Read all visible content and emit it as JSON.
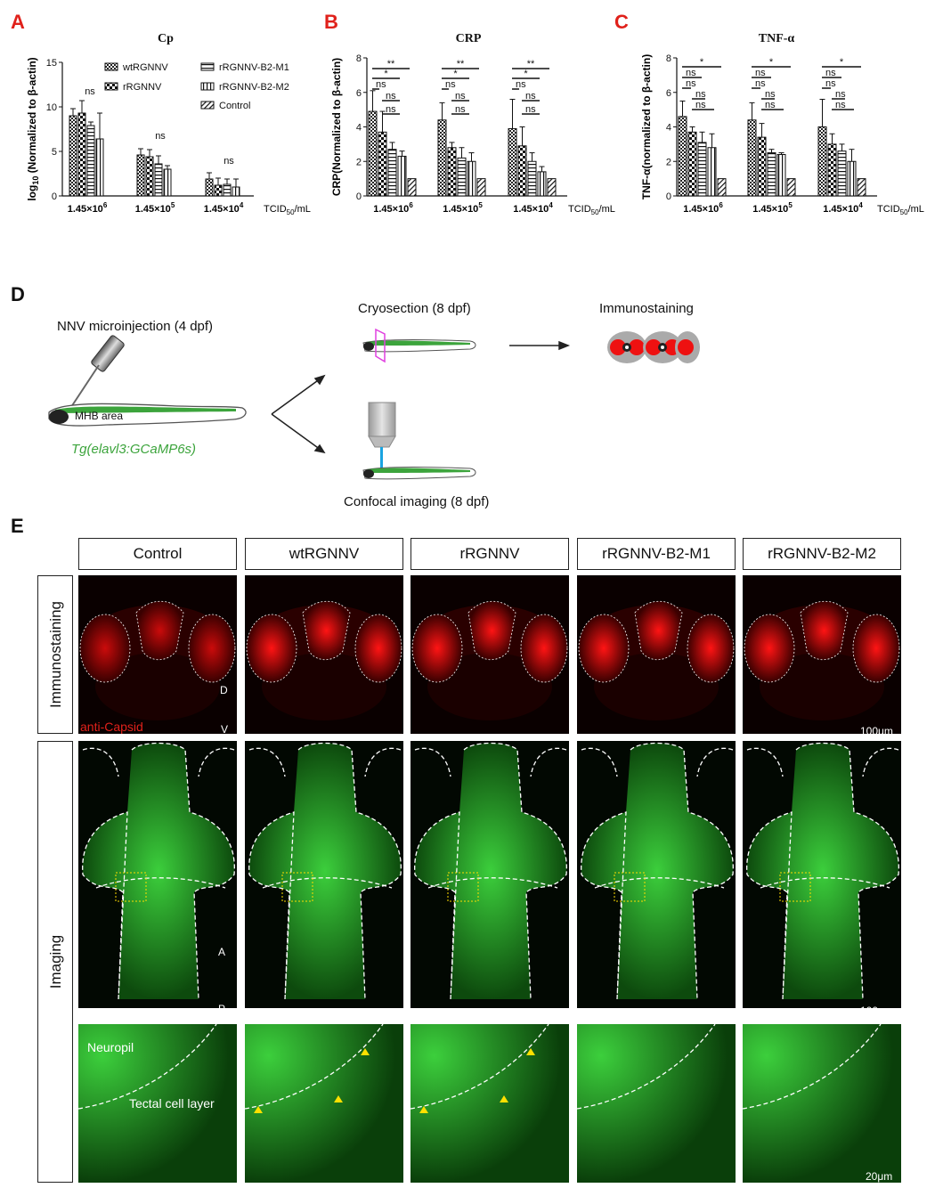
{
  "panels": {
    "A": "A",
    "B": "B",
    "C": "C",
    "D": "D",
    "E": "E"
  },
  "charts_common": {
    "group_labels": [
      "1.45×10",
      "1.45×10",
      "1.45×10"
    ],
    "group_exponents": [
      "6",
      "5",
      "4"
    ],
    "unit_main": "TCID",
    "unit_sub": "50",
    "unit_tail": "/mL",
    "legend": [
      "wtRGNNV",
      "rRGNNV",
      "rRGNNV-B2-M1",
      "rRGNNV-B2-M2",
      "Control"
    ]
  },
  "chart_data": [
    {
      "type": "bar",
      "title": "Cp",
      "ylabel_pre": "log",
      "ylabel_sub": "10",
      "ylabel_post": " (Normalized to β-actin)",
      "ylim": [
        0,
        15
      ],
      "yticks": [
        "0",
        "5",
        "10",
        "15"
      ],
      "categories": [
        "1.45×10^6",
        "1.45×10^5",
        "1.45×10^4"
      ],
      "series": [
        {
          "name": "wtRGNNV",
          "values": [
            9.0,
            4.6,
            1.9
          ],
          "err": [
            0.8,
            0.7,
            0.7
          ]
        },
        {
          "name": "rRGNNV",
          "values": [
            9.3,
            4.4,
            1.2
          ],
          "err": [
            1.4,
            0.8,
            0.8
          ]
        },
        {
          "name": "rRGNNV-B2-M1",
          "values": [
            7.9,
            3.6,
            1.3
          ],
          "err": [
            0.4,
            0.9,
            0.6
          ]
        },
        {
          "name": "rRGNNV-B2-M2",
          "values": [
            6.4,
            3.0,
            1.0
          ],
          "err": [
            2.9,
            0.4,
            0.9
          ]
        }
      ],
      "annotations": [
        "ns",
        "ns",
        "ns"
      ]
    },
    {
      "type": "bar",
      "title": "CRP",
      "ylabel": "CRP(Normalized to β-actin)",
      "ylim": [
        0,
        8
      ],
      "yticks": [
        "0",
        "2",
        "4",
        "6",
        "8"
      ],
      "categories": [
        "1.45×10^6",
        "1.45×10^5",
        "1.45×10^4"
      ],
      "series": [
        {
          "name": "wtRGNNV",
          "values": [
            4.9,
            4.4,
            3.9
          ],
          "err": [
            1.2,
            1.0,
            1.7
          ]
        },
        {
          "name": "rRGNNV",
          "values": [
            3.7,
            2.8,
            2.9
          ],
          "err": [
            1.2,
            0.3,
            1.1
          ]
        },
        {
          "name": "rRGNNV-B2-M1",
          "values": [
            2.7,
            2.2,
            2.0
          ],
          "err": [
            0.4,
            0.6,
            0.5
          ]
        },
        {
          "name": "rRGNNV-B2-M2",
          "values": [
            2.3,
            2.0,
            1.4
          ],
          "err": [
            0.3,
            0.5,
            0.3
          ]
        },
        {
          "name": "Control",
          "values": [
            1.0,
            1.0,
            1.0
          ],
          "err": [
            0,
            0,
            0
          ]
        }
      ],
      "annotations": [
        "**",
        "*",
        "ns",
        "ns",
        "ns"
      ]
    },
    {
      "type": "bar",
      "title": "TNF-α",
      "ylabel": "TNF-α(normalized to β-actin)",
      "ylim": [
        0,
        8
      ],
      "yticks": [
        "0",
        "2",
        "4",
        "6",
        "8"
      ],
      "categories": [
        "1.45×10^6",
        "1.45×10^5",
        "1.45×10^4"
      ],
      "series": [
        {
          "name": "wtRGNNV",
          "values": [
            4.6,
            4.4,
            4.0
          ],
          "err": [
            0.9,
            1.0,
            1.6
          ]
        },
        {
          "name": "rRGNNV",
          "values": [
            3.7,
            3.4,
            3.0
          ],
          "err": [
            0.3,
            0.8,
            0.6
          ]
        },
        {
          "name": "rRGNNV-B2-M1",
          "values": [
            3.1,
            2.5,
            2.6
          ],
          "err": [
            0.6,
            0.2,
            0.4
          ]
        },
        {
          "name": "rRGNNV-B2-M2",
          "values": [
            2.8,
            2.4,
            2.0
          ],
          "err": [
            0.8,
            0.1,
            0.7
          ]
        },
        {
          "name": "Control",
          "values": [
            1.0,
            1.0,
            1.0
          ],
          "err": [
            0,
            0,
            0
          ]
        }
      ],
      "annotations": [
        "*",
        "ns",
        "ns",
        "ns"
      ]
    }
  ],
  "schematic": {
    "injection": "NNV microinjection (4 dpf)",
    "mhb": "MHB area",
    "line": "Tg(elavl3:GCaMP6s)",
    "cryo": "Cryosection (8 dpf)",
    "immuno": "Immunostaining",
    "confocal": "Confocal imaging (8 dpf)"
  },
  "grid": {
    "columns": [
      "Control",
      "wtRGNNV",
      "rRGNNV",
      "rRGNNV-B2-M1",
      "rRGNNV-B2-M2"
    ],
    "row1_label": "Immunostaining",
    "row2_label": "Imaging",
    "stain": "anti-Capsid",
    "dv_top": "D",
    "dv_bottom": "V",
    "ap_top": "A",
    "ap_bottom": "P",
    "scale1": "100μm",
    "scale2": "100μm",
    "scale3": "20μm",
    "neuropil": "Neuropil",
    "tectal": "Tectal cell layer"
  }
}
